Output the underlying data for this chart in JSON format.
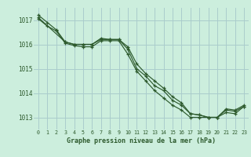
{
  "background_color": "#cceedd",
  "grid_color": "#aacccc",
  "line_color": "#2d5a2d",
  "marker_color": "#2d5a2d",
  "xlabel": "Graphe pression niveau de la mer (hPa)",
  "ylim": [
    1012.5,
    1017.5
  ],
  "xlim": [
    -0.5,
    23.5
  ],
  "yticks": [
    1013,
    1014,
    1015,
    1016,
    1017
  ],
  "xticks": [
    0,
    1,
    2,
    3,
    4,
    5,
    6,
    7,
    8,
    9,
    10,
    11,
    12,
    13,
    14,
    15,
    16,
    17,
    18,
    19,
    20,
    21,
    22,
    23
  ],
  "series": [
    {
      "x": [
        0,
        1,
        2,
        3,
        4,
        5,
        6,
        7,
        8,
        9,
        10,
        11,
        12,
        13,
        14,
        15,
        16,
        17,
        18,
        19,
        20,
        21,
        22,
        23
      ],
      "y": [
        1017.2,
        1016.9,
        1016.6,
        1016.1,
        1016.0,
        1016.0,
        1016.0,
        1016.25,
        1016.2,
        1016.2,
        1015.8,
        1015.0,
        1014.7,
        1014.3,
        1014.1,
        1013.7,
        1013.5,
        1013.15,
        1013.1,
        1013.0,
        1013.0,
        1013.35,
        1013.3,
        1013.5
      ]
    },
    {
      "x": [
        0,
        1,
        2,
        3,
        4,
        5,
        6,
        7,
        8,
        9,
        10,
        11,
        12,
        13,
        14,
        15,
        16,
        17,
        18,
        19,
        20,
        21,
        22,
        23
      ],
      "y": [
        1017.05,
        1016.75,
        1016.55,
        1016.05,
        1015.95,
        1015.9,
        1015.9,
        1016.15,
        1016.15,
        1016.15,
        1015.6,
        1014.9,
        1014.5,
        1014.1,
        1013.8,
        1013.5,
        1013.3,
        1013.0,
        1013.0,
        1013.0,
        1013.0,
        1013.2,
        1013.15,
        1013.45
      ]
    },
    {
      "x": [
        0,
        3,
        4,
        5,
        6,
        7,
        8,
        9,
        10,
        11,
        12,
        13,
        14,
        15,
        16,
        17,
        18,
        19,
        20,
        21,
        22,
        23
      ],
      "y": [
        1017.1,
        1016.1,
        1016.0,
        1016.0,
        1016.0,
        1016.2,
        1016.2,
        1016.2,
        1015.9,
        1015.2,
        1014.8,
        1014.5,
        1014.2,
        1013.85,
        1013.6,
        1013.15,
        1013.1,
        1013.0,
        1013.0,
        1013.3,
        1013.25,
        1013.45
      ]
    }
  ],
  "fig_width": 3.2,
  "fig_height": 2.0,
  "dpi": 100
}
